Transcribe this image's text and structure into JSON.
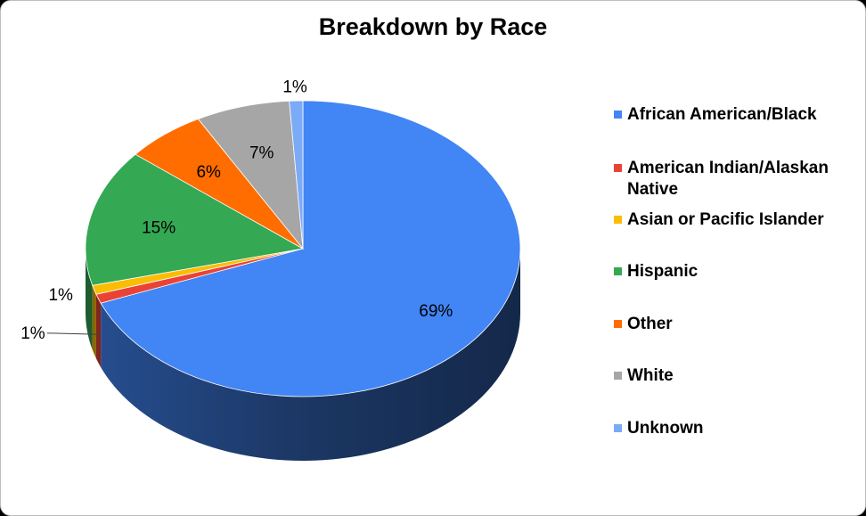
{
  "chart_data": {
    "type": "pie",
    "title": "Breakdown by Race",
    "categories": [
      "African American/Black",
      "American Indian/Alaskan Native",
      "Asian or Pacific Islander",
      "Hispanic",
      "Other",
      "White",
      "Unknown"
    ],
    "values": [
      69,
      1,
      1,
      15,
      6,
      7,
      1
    ],
    "data_labels": [
      "69%",
      "1%",
      "1%",
      "15%",
      "6%",
      "7%",
      "1%"
    ],
    "colors": [
      "#4285f4",
      "#ea4335",
      "#fbbc04",
      "#34a853",
      "#ff6d01",
      "#a6a6a6",
      "#7baaf7"
    ],
    "legend_position": "right",
    "style": "3d"
  }
}
